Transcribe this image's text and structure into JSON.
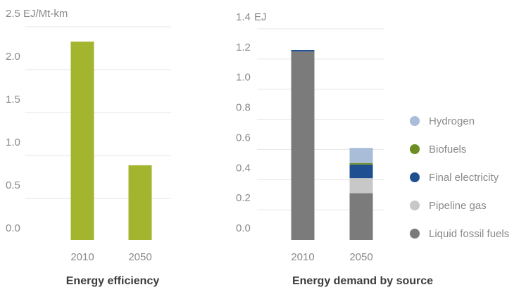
{
  "chart_data": [
    {
      "type": "bar",
      "title": "Energy efficiency",
      "ylabel": "EJ/Mt-km",
      "categories": [
        "2010",
        "2050"
      ],
      "values": [
        2.31,
        0.87
      ],
      "ylim": [
        0,
        2.5
      ],
      "yticks": [
        "0.0",
        "0.5",
        "1.0",
        "1.5",
        "2.0",
        "2.5"
      ],
      "grid": true,
      "colors": {
        "bar": "#a3b52f",
        "grid": "#e6e6e6"
      }
    },
    {
      "type": "bar",
      "stacked": true,
      "title": "Energy demand by source",
      "ylabel": "EJ",
      "categories": [
        "2010",
        "2050"
      ],
      "ylim": [
        0,
        1.4
      ],
      "yticks": [
        "0.0",
        "0.2",
        "0.4",
        "0.6",
        "0.8",
        "1.0",
        "1.2",
        "1.4"
      ],
      "grid": true,
      "legend_position": "right",
      "series": [
        {
          "name": "Liquid fossil fuels",
          "values": [
            1.25,
            0.31
          ],
          "color": "#7b7b7b"
        },
        {
          "name": "Pipeline gas",
          "values": [
            0.0,
            0.1
          ],
          "color": "#c8c8c8"
        },
        {
          "name": "Final electricity",
          "values": [
            0.01,
            0.09
          ],
          "color": "#1d4f91"
        },
        {
          "name": "Biofuels",
          "values": [
            0.0,
            0.01
          ],
          "color": "#6b8e23"
        },
        {
          "name": "Hydrogen",
          "values": [
            0.0,
            0.1
          ],
          "color": "#a9bcd8"
        }
      ]
    }
  ]
}
